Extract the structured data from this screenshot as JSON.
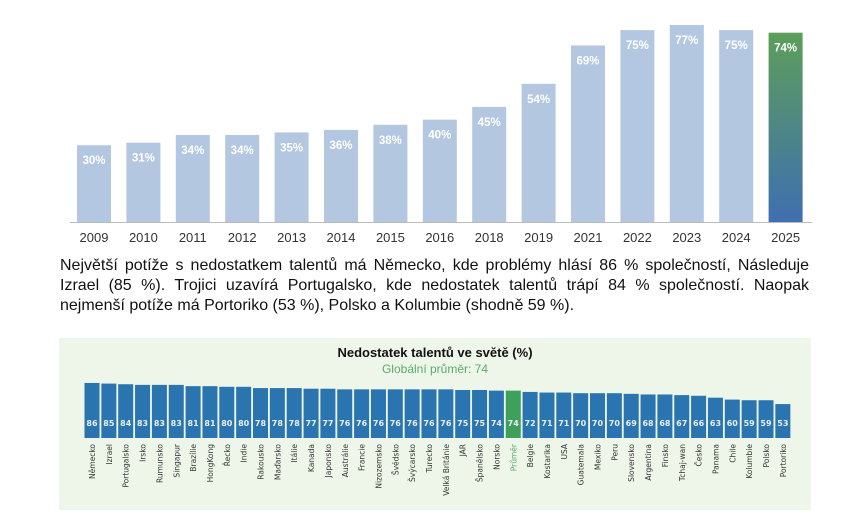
{
  "chart_data": [
    {
      "type": "bar",
      "title": "",
      "categories": [
        "2009",
        "2010",
        "2011",
        "2012",
        "2013",
        "2014",
        "2015",
        "2016",
        "2018",
        "2019",
        "2021",
        "2022",
        "2023",
        "2024",
        "2025"
      ],
      "values": [
        30,
        31,
        34,
        34,
        35,
        36,
        38,
        40,
        45,
        54,
        69,
        75,
        77,
        75,
        74
      ],
      "data_labels": [
        "30%",
        "31%",
        "34%",
        "34%",
        "35%",
        "36%",
        "38%",
        "40%",
        "45%",
        "54%",
        "69%",
        "75%",
        "77%",
        "75%",
        "74%"
      ],
      "ylim": [
        0,
        80
      ],
      "grid": false,
      "colors": {
        "bar": "#b4c7e0",
        "highlight_top": "#5c9e5a",
        "highlight_bottom": "#3f6fb0",
        "label": "#ffffff"
      }
    },
    {
      "type": "bar",
      "title": "Nedostatek talentů ve světě (%)",
      "subtitle": "Globální průměr: 74",
      "categories": [
        "Německo",
        "Izrael",
        "Portugalsko",
        "Irsko",
        "Rumunsko",
        "Singapur",
        "Brazílie",
        "HongKong",
        "Řecko",
        "Indie",
        "Rakousko",
        "Maďarsko",
        "Itálie",
        "Kanada",
        "Japonsko",
        "Austrálie",
        "Francie",
        "Nizozemsko",
        "Švédsko",
        "Švýcarsko",
        "Turecko",
        "Velká Británie",
        "JAR",
        "Španělsko",
        "Norsko",
        "Průměr",
        "Belgie",
        "Kostarika",
        "USA",
        "Guatemala",
        "Mexiko",
        "Peru",
        "Slovensko",
        "Argentina",
        "Finsko",
        "Tchaj-wan",
        "Česko",
        "Panama",
        "Chile",
        "Kolumbie",
        "Polsko",
        "Portoriko"
      ],
      "values": [
        86,
        85,
        84,
        83,
        83,
        83,
        81,
        81,
        80,
        80,
        78,
        78,
        78,
        77,
        77,
        76,
        76,
        76,
        76,
        76,
        76,
        76,
        75,
        75,
        74,
        74,
        72,
        71,
        71,
        70,
        70,
        70,
        69,
        68,
        68,
        67,
        66,
        63,
        60,
        59,
        59,
        53
      ],
      "highlight": "Průměr",
      "ylim": [
        0,
        90
      ],
      "grid": false,
      "colors": {
        "bar": "#2a74b0",
        "highlight": "#3ea05a",
        "subtitle": "#5aac6a",
        "background": "#eef5e9"
      }
    }
  ],
  "paragraph": "Největší potíže s nedostatkem talentů má Německo, kde problémy hlásí 86 % společností, Následuje Izrael (85 %). Trojici uzavírá Portugalsko, kde nedostatek talentů trápí 84 % společností. Naopak nejmenší potíže má Portoriko (53 %), Polsko a Kolumbie (shodně 59 %)."
}
